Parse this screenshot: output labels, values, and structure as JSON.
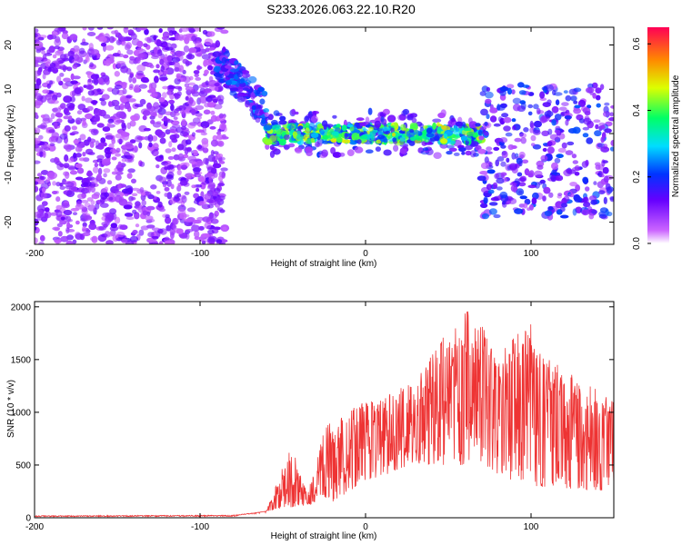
{
  "title": "S233.2026.063.22.10.R20",
  "chart_data": [
    {
      "type": "heatmap",
      "xlabel": "Height of straight line (km)",
      "ylabel": "Frequency (Hz)",
      "xlim": [
        -200,
        150
      ],
      "ylim": [
        -25,
        24
      ],
      "xticks": [
        -200,
        -100,
        0,
        100
      ],
      "yticks": [
        -20,
        -10,
        0,
        10,
        20
      ],
      "colorbar": {
        "label": "Normalized spectral amplitude",
        "range": [
          0,
          0.65
        ],
        "ticks": [
          0.0,
          0.2,
          0.4,
          0.6
        ]
      },
      "features": [
        {
          "region": "noise",
          "x": [
            -200,
            -85
          ],
          "freq": [
            -25,
            24
          ],
          "amplitude": 0.1
        },
        {
          "region": "rising band",
          "x": [
            -90,
            -60
          ],
          "freq": [
            5,
            18
          ],
          "amplitude": 0.25
        },
        {
          "region": "central band",
          "x": [
            -60,
            70
          ],
          "freq": [
            -5,
            5
          ],
          "amplitude": 0.45
        },
        {
          "region": "scattered",
          "x": [
            70,
            150
          ],
          "freq": [
            -20,
            10
          ],
          "amplitude": 0.2
        }
      ]
    },
    {
      "type": "line",
      "xlabel": "Height of straight line (km)",
      "ylabel": "SNR (10 * v/v)",
      "xlim": [
        -200,
        150
      ],
      "ylim": [
        0,
        2050
      ],
      "xticks": [
        -200,
        -100,
        0,
        100
      ],
      "yticks": [
        0,
        500,
        1000,
        1500,
        2000
      ],
      "color": "#ee3333",
      "envelope": [
        {
          "x": -200,
          "y": 20
        },
        {
          "x": -80,
          "y": 25
        },
        {
          "x": -60,
          "y": 60
        },
        {
          "x": -45,
          "y": 700
        },
        {
          "x": -35,
          "y": 220
        },
        {
          "x": -25,
          "y": 850
        },
        {
          "x": -15,
          "y": 1000
        },
        {
          "x": 0,
          "y": 1100
        },
        {
          "x": 30,
          "y": 1300
        },
        {
          "x": 60,
          "y": 2050
        },
        {
          "x": 80,
          "y": 1600
        },
        {
          "x": 100,
          "y": 1850
        },
        {
          "x": 120,
          "y": 1400
        },
        {
          "x": 150,
          "y": 1150
        }
      ],
      "baseline": [
        {
          "x": -200,
          "y": 10
        },
        {
          "x": -80,
          "y": 12
        },
        {
          "x": -45,
          "y": 100
        },
        {
          "x": -20,
          "y": 150
        },
        {
          "x": 0,
          "y": 350
        },
        {
          "x": 30,
          "y": 500
        },
        {
          "x": 60,
          "y": 500
        },
        {
          "x": 100,
          "y": 300
        },
        {
          "x": 150,
          "y": 250
        }
      ]
    }
  ]
}
